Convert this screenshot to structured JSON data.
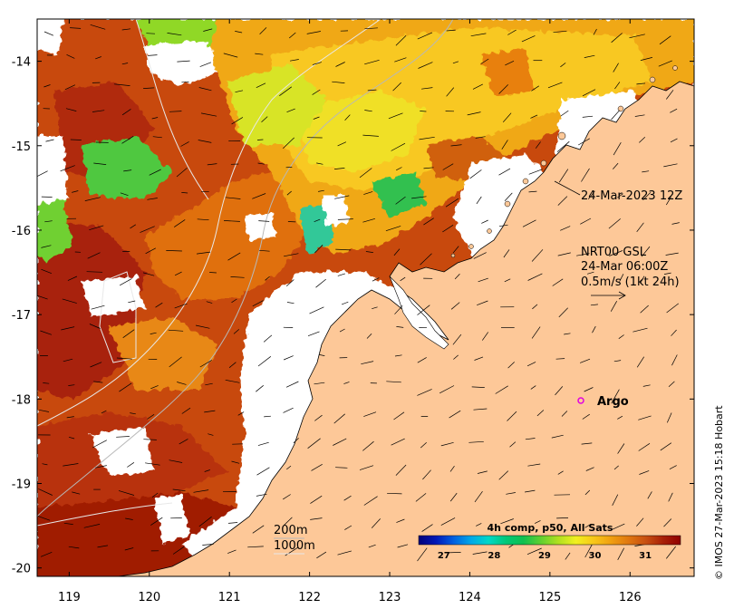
{
  "map": {
    "lon_range": [
      118.6,
      126.8
    ],
    "lat_range": [
      -20.1,
      -13.5
    ],
    "lon_ticks": [
      "119",
      "120",
      "121",
      "122",
      "123",
      "124",
      "125",
      "126"
    ],
    "lat_ticks": [
      "-14",
      "-15",
      "-16",
      "-17",
      "-18",
      "-19",
      "-20"
    ]
  },
  "annotations": {
    "image_time": "24-Mar-2023 12Z",
    "current_source": "NRT00 GSL",
    "current_time": "24-Mar 06:00Z",
    "current_scale": "0.5m/s (1kt 24h)",
    "argo_label": "Argo",
    "isobath_200": "200m",
    "isobath_1000": "1000m",
    "credit": "© IMOS 27-Mar-2023 15:18 Hobart"
  },
  "colorbar": {
    "title": "4h comp, p50, All Sats",
    "labels": [
      "27",
      "28",
      "29",
      "30",
      "31"
    ],
    "min": 26.5,
    "max": 31.7,
    "colors": [
      "#00007a",
      "#0018b8",
      "#0060e0",
      "#00a8e8",
      "#00d8c8",
      "#00c878",
      "#10c050",
      "#60d030",
      "#b0e020",
      "#f0f020",
      "#f8c818",
      "#f0a010",
      "#e07810",
      "#c85010",
      "#a82008",
      "#900000"
    ]
  },
  "colors": {
    "land": "#fdc898",
    "nodata": "#ffffff",
    "argo_marker": "#e000e0"
  }
}
